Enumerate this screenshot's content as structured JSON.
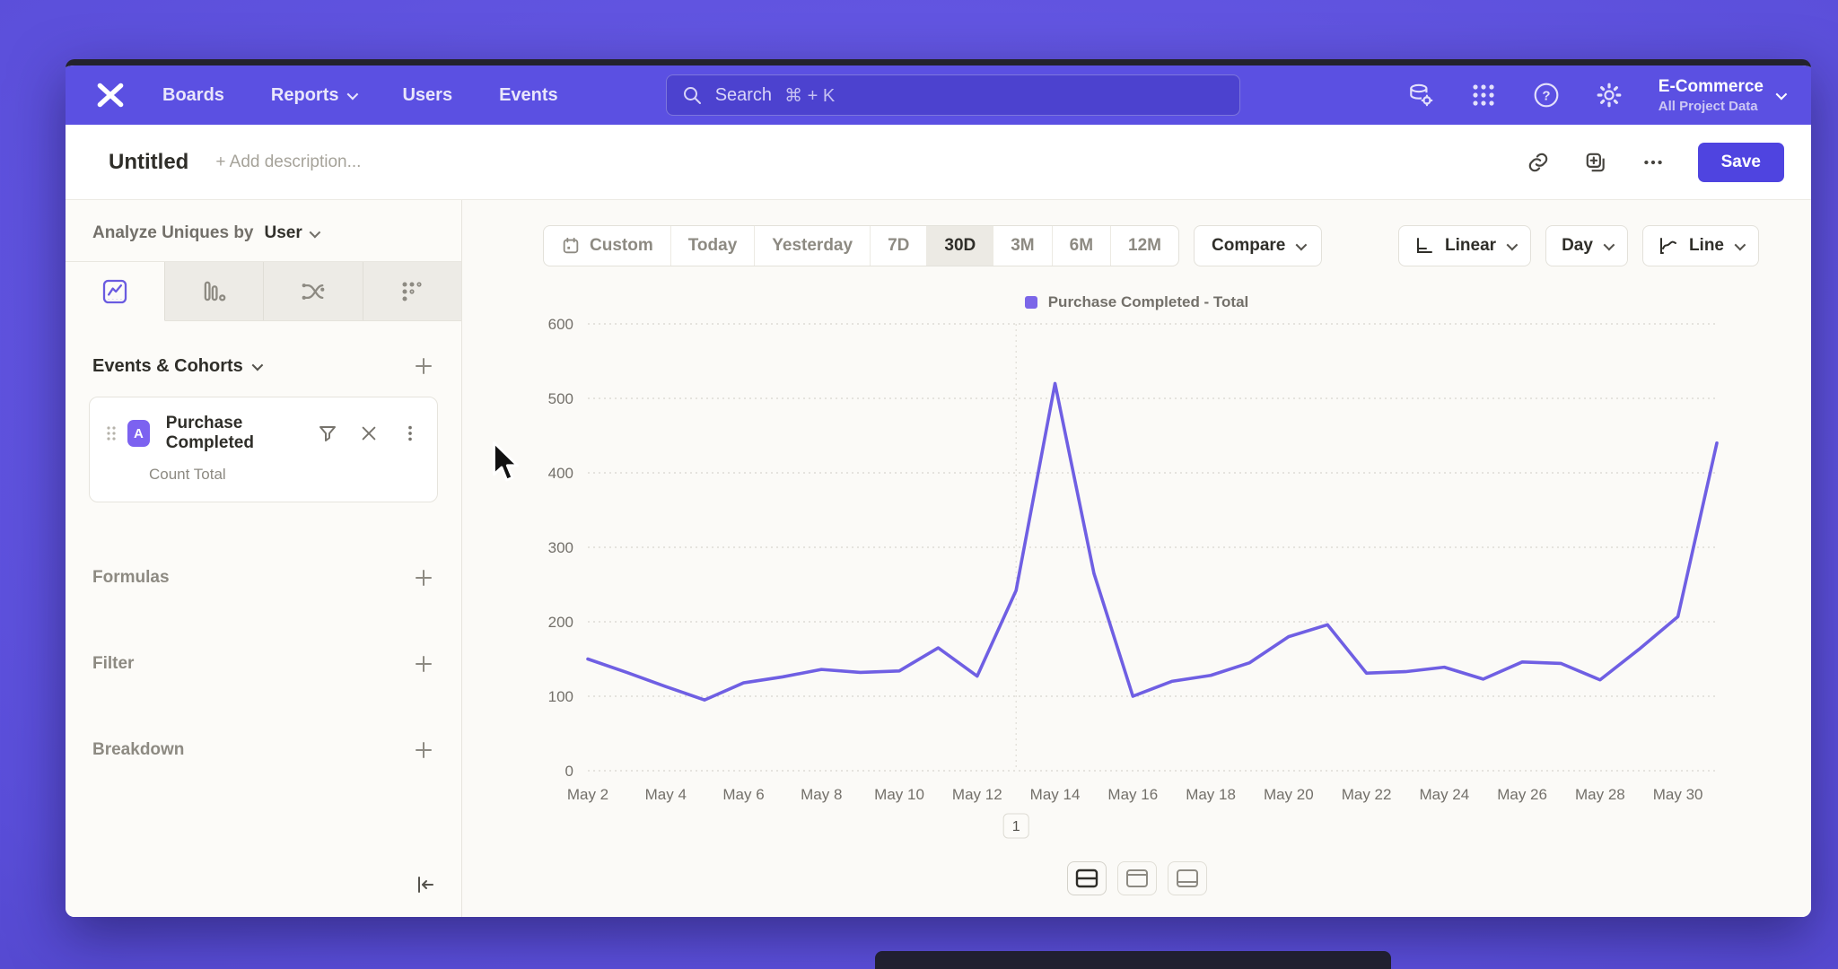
{
  "navbar": {
    "items": [
      {
        "label": "Boards",
        "has_chevron": false
      },
      {
        "label": "Reports",
        "has_chevron": true
      },
      {
        "label": "Users",
        "has_chevron": false
      },
      {
        "label": "Events",
        "has_chevron": false
      }
    ],
    "search": {
      "placeholder": "Search",
      "shortcut": "⌘ + K"
    },
    "project": {
      "name": "E-Commerce",
      "scope": "All Project Data"
    }
  },
  "header": {
    "title": "Untitled",
    "description_placeholder": "+ Add description...",
    "save_label": "Save"
  },
  "sidebar": {
    "analyze_prefix": "Analyze Uniques by",
    "analyze_value": "User",
    "events_section_title": "Events & Cohorts",
    "event_card": {
      "badge": "A",
      "name": "Purchase Completed",
      "metric": "Count Total"
    },
    "sections": [
      {
        "label": "Formulas"
      },
      {
        "label": "Filter"
      },
      {
        "label": "Breakdown"
      }
    ]
  },
  "toolbar": {
    "ranges": [
      "Custom",
      "Today",
      "Yesterday",
      "7D",
      "30D",
      "3M",
      "6M",
      "12M"
    ],
    "selected_range": "30D",
    "compare_label": "Compare",
    "scale_label": "Linear",
    "interval_label": "Day",
    "chart_type_label": "Line"
  },
  "icons": {
    "navbar_right": [
      "data-integrations-icon",
      "apps-grid-icon",
      "help-icon",
      "gear-icon"
    ],
    "header_actions": [
      "link-icon",
      "copy-icon",
      "more-icon"
    ],
    "sidebar_tabs": [
      "insights-chart-icon",
      "funnel-bars-icon",
      "flows-icon",
      "retention-dots-icon"
    ],
    "event_card": [
      "drag-handle-icon",
      "filter-funnel-icon",
      "close-icon",
      "kebab-icon"
    ],
    "layout_toggles": [
      "split-view-icon",
      "top-panel-view-icon",
      "bottom-panel-view-icon"
    ]
  },
  "colors": {
    "navbar": "#5b50e2",
    "accent": "#4f44e0",
    "line": "#6f5fe3",
    "legend_swatch": "#7b66e8",
    "event_badge": "#7c62f0",
    "grid": "#cfccc4",
    "axis_text": "#73706a"
  },
  "chart_data": {
    "type": "line",
    "title": "",
    "xlabel": "",
    "ylabel": "",
    "ylim": [
      0,
      600
    ],
    "yticks": [
      0,
      100,
      200,
      300,
      400,
      500,
      600
    ],
    "grid": "horizontal-dotted",
    "legend_position": "top-center",
    "xtick_labels": [
      "May 2",
      "May 4",
      "May 6",
      "May 8",
      "May 10",
      "May 12",
      "May 14",
      "May 16",
      "May 18",
      "May 20",
      "May 22",
      "May 24",
      "May 26",
      "May 28",
      "May 30"
    ],
    "series": [
      {
        "name": "Purchase Completed - Total",
        "color": "#6f5fe3",
        "x": [
          "May 2",
          "May 3",
          "May 4",
          "May 5",
          "May 6",
          "May 7",
          "May 8",
          "May 9",
          "May 10",
          "May 11",
          "May 12",
          "May 13",
          "May 14",
          "May 15",
          "May 16",
          "May 17",
          "May 18",
          "May 19",
          "May 20",
          "May 21",
          "May 22",
          "May 23",
          "May 24",
          "May 25",
          "May 26",
          "May 27",
          "May 28",
          "May 29",
          "May 30",
          "May 31"
        ],
        "values": [
          150,
          132,
          113,
          95,
          118,
          126,
          136,
          132,
          134,
          165,
          127,
          242,
          520,
          265,
          100,
          120,
          128,
          145,
          180,
          196,
          131,
          133,
          139,
          123,
          146,
          144,
          122,
          163,
          207,
          440
        ]
      }
    ],
    "annotations": [
      {
        "label": "1",
        "x": "May 13"
      }
    ]
  }
}
